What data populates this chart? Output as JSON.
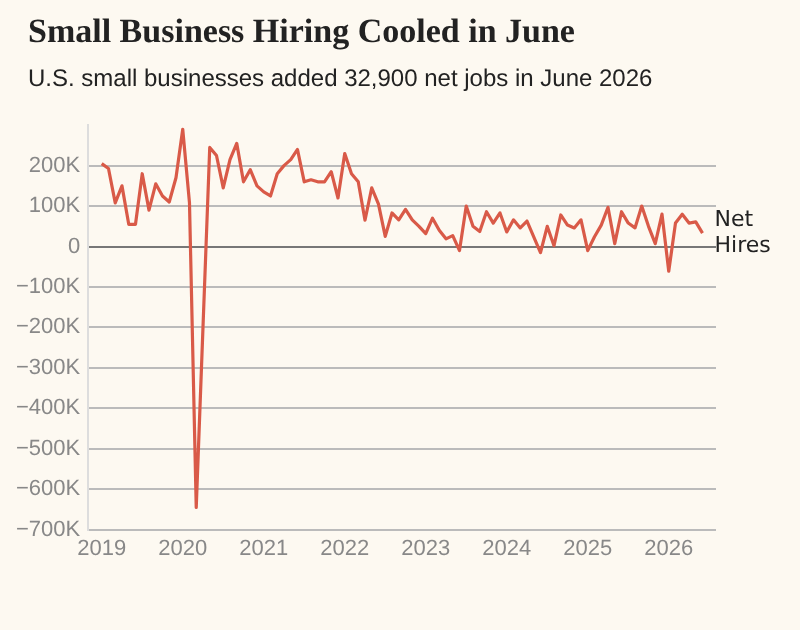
{
  "chart_data": {
    "type": "line",
    "title": "Small Business Hiring Cooled in June",
    "subtitle": "U.S. small businesses added 32,900 net jobs in June 2026",
    "x": [
      "2019-01",
      "2019-02",
      "2019-03",
      "2019-04",
      "2019-05",
      "2019-06",
      "2019-07",
      "2019-08",
      "2019-09",
      "2019-10",
      "2019-11",
      "2019-12",
      "2020-01",
      "2020-02",
      "2020-03",
      "2020-04",
      "2020-05",
      "2020-06",
      "2020-07",
      "2020-08",
      "2020-09",
      "2020-10",
      "2020-11",
      "2020-12",
      "2021-01",
      "2021-02",
      "2021-03",
      "2021-04",
      "2021-05",
      "2021-06",
      "2021-07",
      "2021-08",
      "2021-09",
      "2021-10",
      "2021-11",
      "2021-12",
      "2022-01",
      "2022-02",
      "2022-03",
      "2022-04",
      "2022-05",
      "2022-06",
      "2022-07",
      "2022-08",
      "2022-09",
      "2022-10",
      "2022-11",
      "2022-12",
      "2023-01",
      "2023-02",
      "2023-03",
      "2023-04",
      "2023-05",
      "2023-06",
      "2023-07",
      "2023-08",
      "2023-09",
      "2023-10",
      "2023-11",
      "2023-12",
      "2024-01",
      "2024-02",
      "2024-03",
      "2024-04",
      "2024-05",
      "2024-06",
      "2024-07",
      "2024-08",
      "2024-09",
      "2024-10",
      "2024-11",
      "2024-12",
      "2025-01",
      "2025-02",
      "2025-03",
      "2025-04",
      "2025-05",
      "2025-06",
      "2025-07",
      "2025-08",
      "2025-09",
      "2025-10",
      "2025-11",
      "2025-12",
      "2026-01",
      "2026-02",
      "2026-03",
      "2026-04",
      "2026-05",
      "2026-06"
    ],
    "series": [
      {
        "name": "Net Hires",
        "color": "#d95a48",
        "values": [
          205000,
          193000,
          108000,
          150000,
          55000,
          55000,
          180000,
          90000,
          155000,
          125000,
          110000,
          170000,
          290000,
          108000,
          -645000,
          -200000,
          245000,
          225000,
          145000,
          215000,
          255000,
          160000,
          190000,
          150000,
          135000,
          125000,
          180000,
          200000,
          215000,
          240000,
          160000,
          165000,
          160000,
          160000,
          185000,
          120000,
          230000,
          180000,
          160000,
          65000,
          145000,
          105000,
          25000,
          83000,
          66000,
          92000,
          66000,
          50000,
          32000,
          70000,
          40000,
          19000,
          27000,
          -10000,
          100000,
          50000,
          37000,
          86000,
          58000,
          83000,
          36000,
          66000,
          46000,
          63000,
          24000,
          -15000,
          50000,
          2000,
          78000,
          53000,
          46000,
          66000,
          -10000,
          24000,
          53000,
          97000,
          7000,
          86000,
          58000,
          46000,
          100000,
          50000,
          7000,
          80000,
          -61000,
          58000,
          80000,
          58000,
          61000,
          33000
        ]
      }
    ],
    "xlim": [
      "2018-11",
      "2026-08"
    ],
    "xticks": [
      "2019",
      "2020",
      "2021",
      "2022",
      "2023",
      "2024",
      "2025",
      "2026"
    ],
    "ylim": [
      -700000,
      300000
    ],
    "yticks": [
      {
        "value": -700000,
        "label": "−700K"
      },
      {
        "value": -600000,
        "label": "−600K"
      },
      {
        "value": -500000,
        "label": "−500K"
      },
      {
        "value": -400000,
        "label": "−400K"
      },
      {
        "value": -300000,
        "label": "−300K"
      },
      {
        "value": -200000,
        "label": "−200K"
      },
      {
        "value": -100000,
        "label": "−100K"
      },
      {
        "value": 0,
        "label": "0"
      },
      {
        "value": 100000,
        "label": "100K"
      },
      {
        "value": 200000,
        "label": "200K"
      }
    ],
    "grid": "y",
    "legend": false,
    "marker": "none",
    "line_style": "solid"
  }
}
